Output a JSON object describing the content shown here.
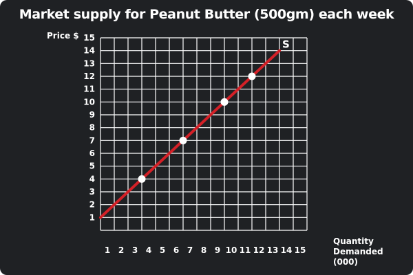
{
  "title": "Market supply for Peanut Butter (500gm) each week",
  "colors": {
    "background": "#1f2124",
    "grid": "#ffffff",
    "text": "#ffffff",
    "supply_line": "#d42027",
    "points": "#ffffff"
  },
  "chart_data": {
    "type": "line",
    "title": "Market supply for Peanut Butter (500gm) each week",
    "ylabel": "Price $",
    "xlabel_lines": [
      "Quantity",
      "Demanded",
      "(000)"
    ],
    "xlim": [
      0,
      15
    ],
    "ylim": [
      0,
      15
    ],
    "x_ticks": [
      "1",
      "2",
      "3",
      "4",
      "5",
      "6",
      "7",
      "8",
      "9",
      "10",
      "11",
      "12",
      "13",
      "14",
      "15"
    ],
    "y_ticks": [
      "1",
      "2",
      "3",
      "4",
      "5",
      "6",
      "7",
      "8",
      "9",
      "10",
      "11",
      "12",
      "13",
      "14",
      "15"
    ],
    "grid": true,
    "series": [
      {
        "name": "S",
        "line": [
          [
            0,
            1
          ],
          [
            13,
            14
          ]
        ],
        "points": [
          {
            "x": 3,
            "y": 4
          },
          {
            "x": 6,
            "y": 7
          },
          {
            "x": 9,
            "y": 10
          },
          {
            "x": 11,
            "y": 12
          }
        ]
      }
    ]
  }
}
